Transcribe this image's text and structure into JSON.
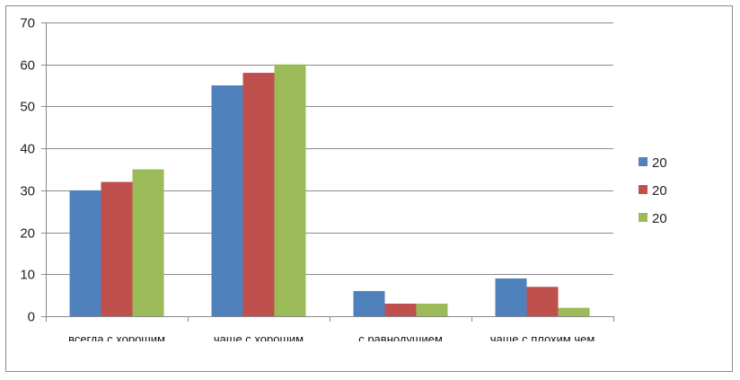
{
  "chart_data": {
    "type": "bar",
    "categories": [
      "всегда  с хорошим",
      "чаще с хорошим",
      "с равнодушием",
      "чаще  с плохим  чем"
    ],
    "series": [
      {
        "name": "20",
        "color": "#4f81bd",
        "values": [
          30,
          55,
          6,
          9
        ]
      },
      {
        "name": "20",
        "color": "#c0504d",
        "values": [
          32,
          58,
          3,
          7
        ]
      },
      {
        "name": "20",
        "color": "#9bbb59",
        "values": [
          35,
          60,
          3,
          2
        ]
      }
    ],
    "ylim": [
      0,
      70
    ],
    "yticks": [
      0,
      10,
      20,
      30,
      40,
      50,
      60,
      70
    ],
    "grid": true,
    "legend": "right"
  }
}
